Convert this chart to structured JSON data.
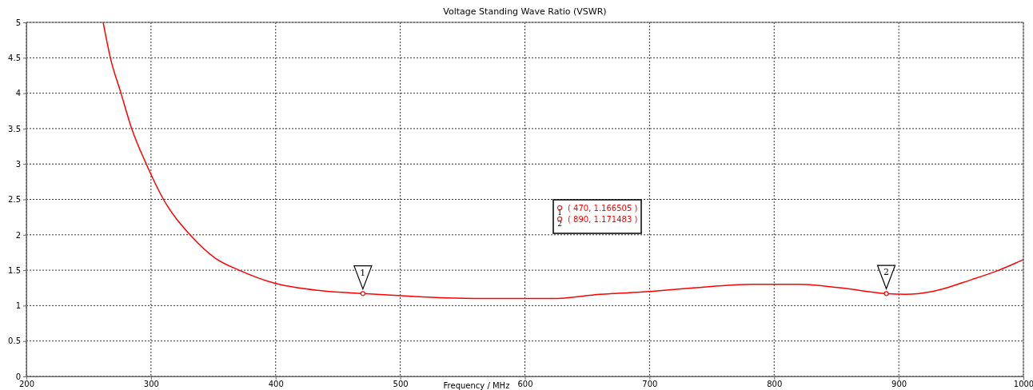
{
  "chart_data": {
    "type": "line",
    "title": "Voltage Standing Wave Ratio (VSWR)",
    "xlabel": "Frequency / MHz",
    "xlim": [
      200,
      1000
    ],
    "xticks": [
      200,
      300,
      400,
      500,
      600,
      700,
      800,
      900,
      1000
    ],
    "ylim": [
      0,
      5
    ],
    "yticks": [
      0,
      0.5,
      1,
      1.5,
      2,
      2.5,
      3,
      3.5,
      4,
      4.5,
      5
    ],
    "grid": true,
    "line_style": "solid",
    "series": [
      {
        "color": "#ff0000",
        "marker": "none",
        "x": [
          261.6,
          267.4,
          275.9,
          284.5,
          296.2,
          310,
          331.3,
          351.6,
          370.8,
          398.4,
          436.8,
          470,
          500.6,
          537,
          581.7,
          622,
          660.5,
          692.5,
          735,
          782,
          820.4,
          854,
          890,
          905.6,
          926.9,
          958.9,
          980.2,
          1000
        ],
        "values": [
          5.0,
          4.5,
          4.0,
          3.5,
          3.0,
          2.5,
          2.0,
          1.67,
          1.5,
          1.32,
          1.21,
          1.17,
          1.14,
          1.11,
          1.1,
          1.1,
          1.16,
          1.19,
          1.25,
          1.3,
          1.3,
          1.25,
          1.17,
          1.16,
          1.2,
          1.37,
          1.5,
          1.65
        ]
      },
      {
        "type": "scatter",
        "color": "#ff0000",
        "marker": "circle",
        "x": [
          470,
          890
        ],
        "values": [
          1.17,
          1.17
        ]
      }
    ],
    "annotations": [
      {
        "text": "1",
        "x": 470,
        "y": 1.166505
      },
      {
        "text": "2",
        "x": 890,
        "y": 1.171483
      },
      "( 470, 1.166505 )",
      "( 890, 1.171483 )"
    ]
  }
}
